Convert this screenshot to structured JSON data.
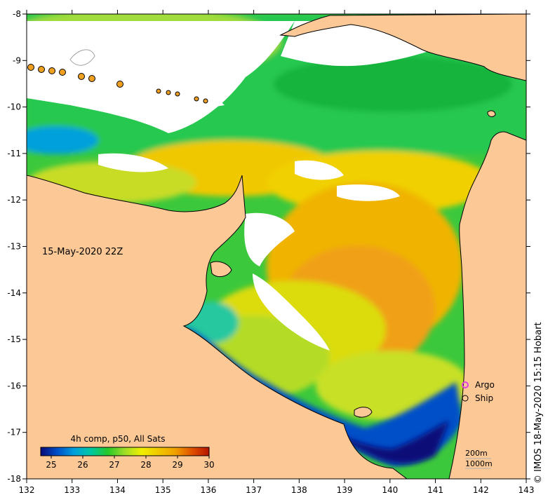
{
  "map": {
    "date_label": "15-May-2020 22Z",
    "credit": "© IMOS 18-May-2020 15:15 Hobart",
    "lon_ticks": [
      "132",
      "133",
      "134",
      "135",
      "136",
      "137",
      "138",
      "139",
      "140",
      "141",
      "142",
      "143"
    ],
    "lat_ticks": [
      "-8",
      "-9",
      "-10",
      "-11",
      "-12",
      "-13",
      "-14",
      "-15",
      "-16",
      "-17",
      "-18"
    ],
    "colorbar": {
      "title": "4h comp, p50, All Sats",
      "ticks": [
        "25",
        "26",
        "27",
        "28",
        "29",
        "30"
      ],
      "colors": [
        "#0a0a78",
        "#0050c8",
        "#00a0dc",
        "#00c8a0",
        "#28c828",
        "#a0dc28",
        "#f0f000",
        "#f0c800",
        "#f0a000",
        "#e05000",
        "#b41400"
      ]
    },
    "legend": {
      "argo": "Argo",
      "ship": "Ship",
      "contour_200": "200m",
      "contour_1000": "1000m"
    },
    "colors": {
      "land": "#fbc896",
      "cloud": "#ffffff",
      "ship_marker": "#f0a020",
      "argo_marker": "#e040e0"
    }
  }
}
